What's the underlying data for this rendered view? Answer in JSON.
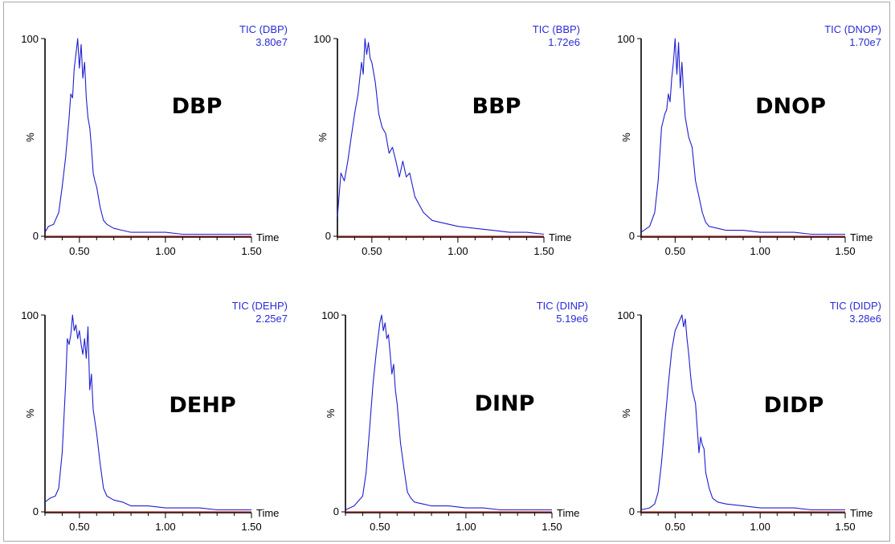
{
  "colors": {
    "trace": "#1f1fd0",
    "axis": "#000000",
    "baseline": "#b22222",
    "label": "#2b2bd6"
  },
  "axis_labels": {
    "y_unit": "%",
    "x_unit": "Time"
  },
  "chart_data": [
    {
      "type": "line",
      "compound": "DBP",
      "trace_name": "TIC (DBP)",
      "intensity": "3.80e7",
      "xlabel": "Time",
      "ylabel": "%",
      "xlim": [
        0.3,
        1.5
      ],
      "ylim": [
        0,
        100
      ],
      "xticks": [
        "0.50",
        "1.00",
        "1.50"
      ],
      "yticks": [
        "0",
        "100"
      ],
      "x": [
        0.3,
        0.32,
        0.35,
        0.38,
        0.4,
        0.42,
        0.44,
        0.45,
        0.46,
        0.47,
        0.48,
        0.49,
        0.5,
        0.51,
        0.52,
        0.53,
        0.54,
        0.55,
        0.56,
        0.57,
        0.58,
        0.59,
        0.6,
        0.62,
        0.64,
        0.66,
        0.7,
        0.75,
        0.8,
        0.9,
        1.0,
        1.1,
        1.2,
        1.3,
        1.4,
        1.5
      ],
      "y": [
        2,
        5,
        6,
        12,
        25,
        40,
        60,
        72,
        70,
        85,
        92,
        100,
        85,
        97,
        80,
        88,
        70,
        60,
        55,
        45,
        32,
        28,
        25,
        15,
        8,
        6,
        4,
        3,
        2,
        2,
        2,
        1,
        1,
        1,
        1,
        1
      ]
    },
    {
      "type": "line",
      "compound": "BBP",
      "trace_name": "TIC (BBP)",
      "intensity": "1.72e6",
      "xlabel": "Time",
      "ylabel": "%",
      "xlim": [
        0.3,
        1.5
      ],
      "ylim": [
        0,
        100
      ],
      "xticks": [
        "0.50",
        "1.00",
        "1.50"
      ],
      "yticks": [
        "0",
        "100"
      ],
      "x": [
        0.3,
        0.32,
        0.34,
        0.36,
        0.38,
        0.4,
        0.42,
        0.44,
        0.45,
        0.46,
        0.47,
        0.48,
        0.49,
        0.5,
        0.52,
        0.54,
        0.56,
        0.58,
        0.6,
        0.62,
        0.64,
        0.66,
        0.68,
        0.7,
        0.72,
        0.75,
        0.8,
        0.85,
        0.9,
        1.0,
        1.1,
        1.2,
        1.3,
        1.4,
        1.5
      ],
      "y": [
        10,
        32,
        28,
        38,
        50,
        62,
        72,
        88,
        82,
        100,
        92,
        98,
        90,
        88,
        78,
        62,
        55,
        52,
        42,
        45,
        38,
        30,
        38,
        30,
        32,
        20,
        12,
        8,
        7,
        5,
        4,
        3,
        2,
        2,
        1
      ]
    },
    {
      "type": "line",
      "compound": "DNOP",
      "trace_name": "TIC (DNOP)",
      "intensity": "1.70e7",
      "xlabel": "Time",
      "ylabel": "%",
      "xlim": [
        0.3,
        1.5
      ],
      "ylim": [
        0,
        100
      ],
      "xticks": [
        "0.50",
        "1.00",
        "1.50"
      ],
      "yticks": [
        "0",
        "100"
      ],
      "x": [
        0.3,
        0.35,
        0.38,
        0.4,
        0.42,
        0.44,
        0.45,
        0.46,
        0.47,
        0.48,
        0.49,
        0.5,
        0.51,
        0.52,
        0.53,
        0.54,
        0.55,
        0.56,
        0.58,
        0.6,
        0.62,
        0.64,
        0.66,
        0.68,
        0.7,
        0.75,
        0.8,
        0.9,
        1.0,
        1.1,
        1.2,
        1.3,
        1.4,
        1.5
      ],
      "y": [
        2,
        5,
        12,
        28,
        55,
        62,
        64,
        72,
        68,
        80,
        88,
        100,
        82,
        98,
        75,
        88,
        72,
        60,
        50,
        45,
        28,
        20,
        12,
        7,
        5,
        4,
        3,
        3,
        2,
        2,
        2,
        1,
        1,
        1
      ]
    },
    {
      "type": "line",
      "compound": "DEHP",
      "trace_name": "TIC (DEHP)",
      "intensity": "2.25e7",
      "xlabel": "Time",
      "ylabel": "%",
      "xlim": [
        0.3,
        1.5
      ],
      "ylim": [
        0,
        100
      ],
      "xticks": [
        "0.50",
        "1.00",
        "1.50"
      ],
      "yticks": [
        "0",
        "100"
      ],
      "x": [
        0.3,
        0.33,
        0.36,
        0.38,
        0.4,
        0.42,
        0.43,
        0.44,
        0.45,
        0.46,
        0.47,
        0.48,
        0.49,
        0.5,
        0.51,
        0.52,
        0.53,
        0.54,
        0.55,
        0.56,
        0.57,
        0.58,
        0.6,
        0.62,
        0.64,
        0.66,
        0.7,
        0.75,
        0.8,
        0.9,
        1.0,
        1.1,
        1.2,
        1.3,
        1.4,
        1.5
      ],
      "y": [
        5,
        7,
        8,
        12,
        30,
        65,
        88,
        85,
        90,
        100,
        92,
        95,
        88,
        92,
        85,
        80,
        88,
        78,
        94,
        62,
        70,
        52,
        40,
        25,
        12,
        8,
        6,
        5,
        3,
        3,
        2,
        2,
        2,
        1,
        1,
        1
      ]
    },
    {
      "type": "line",
      "compound": "DINP",
      "trace_name": "TIC (DINP)",
      "intensity": "5.19e6",
      "xlabel": "Time",
      "ylabel": "%",
      "xlim": [
        0.3,
        1.5
      ],
      "ylim": [
        0,
        100
      ],
      "xticks": [
        "0.50",
        "1.00",
        "1.50"
      ],
      "yticks": [
        "0",
        "100"
      ],
      "x": [
        0.3,
        0.35,
        0.4,
        0.42,
        0.44,
        0.46,
        0.48,
        0.5,
        0.51,
        0.52,
        0.53,
        0.54,
        0.55,
        0.56,
        0.57,
        0.58,
        0.59,
        0.6,
        0.61,
        0.62,
        0.64,
        0.66,
        0.68,
        0.7,
        0.75,
        0.8,
        0.9,
        1.0,
        1.1,
        1.2,
        1.3,
        1.4,
        1.5
      ],
      "y": [
        1,
        3,
        8,
        20,
        42,
        65,
        82,
        96,
        100,
        92,
        96,
        88,
        90,
        80,
        70,
        75,
        62,
        55,
        45,
        35,
        22,
        10,
        7,
        5,
        4,
        3,
        3,
        2,
        2,
        1,
        1,
        1,
        1
      ]
    },
    {
      "type": "line",
      "compound": "DIDP",
      "trace_name": "TIC (DIDP)",
      "intensity": "3.28e6",
      "xlabel": "Time",
      "ylabel": "%",
      "xlim": [
        0.3,
        1.5
      ],
      "ylim": [
        0,
        100
      ],
      "xticks": [
        "0.50",
        "1.00",
        "1.50"
      ],
      "yticks": [
        "0",
        "100"
      ],
      "x": [
        0.3,
        0.35,
        0.38,
        0.4,
        0.42,
        0.44,
        0.46,
        0.48,
        0.5,
        0.52,
        0.54,
        0.55,
        0.56,
        0.57,
        0.58,
        0.59,
        0.6,
        0.62,
        0.64,
        0.65,
        0.66,
        0.67,
        0.68,
        0.7,
        0.72,
        0.75,
        0.8,
        0.9,
        1.0,
        1.1,
        1.2,
        1.3,
        1.4,
        1.5
      ],
      "y": [
        1,
        2,
        4,
        10,
        25,
        45,
        65,
        82,
        92,
        96,
        100,
        94,
        98,
        88,
        80,
        70,
        62,
        55,
        30,
        38,
        34,
        32,
        20,
        12,
        7,
        5,
        4,
        3,
        2,
        2,
        2,
        1,
        1,
        1
      ]
    }
  ]
}
